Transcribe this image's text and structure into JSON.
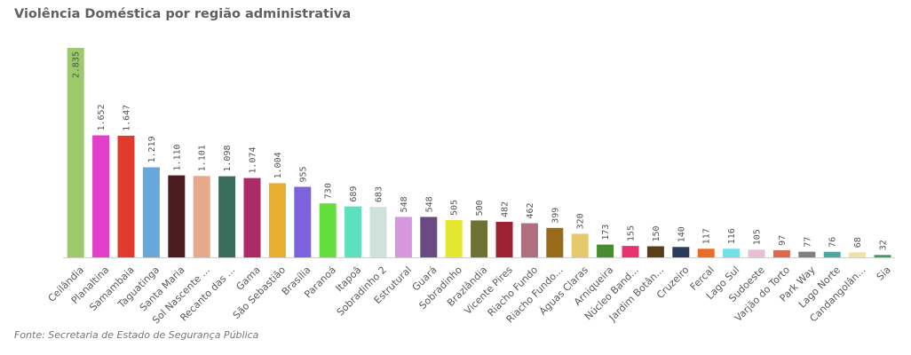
{
  "chart_data": {
    "type": "bar",
    "title": "Violência Doméstica por região administrativa",
    "xlabel": "",
    "ylabel": "",
    "ylim": [
      0,
      2835
    ],
    "grid": false,
    "legend": "none",
    "categories": [
      "Ceilândia",
      "Planaltina",
      "Samambaia",
      "Taguatinga",
      "Santa Maria",
      "Sol Nascente ...",
      "Recanto das ...",
      "Gama",
      "São Sebastião",
      "Brasília",
      "Paranoá",
      "Itapoã",
      "Sobradinho 2",
      "Estrutural",
      "Guará",
      "Sobradinho",
      "Brazlândia",
      "Vicente Pires",
      "Riacho Fundo",
      "Riacho Fundo...",
      "Águas Claras",
      "Arniqueira",
      "Núcleo Band...",
      "Jardim Botân...",
      "Cruzeiro",
      "Fercal",
      "Lago Sul",
      "Sudoeste",
      "Varjão do Torto",
      "Park Way",
      "Lago Norte",
      "Candangolân...",
      "Sia"
    ],
    "values": [
      2835,
      1652,
      1647,
      1219,
      1110,
      1101,
      1098,
      1074,
      1004,
      955,
      730,
      689,
      683,
      548,
      548,
      505,
      500,
      482,
      462,
      399,
      320,
      173,
      155,
      150,
      140,
      117,
      116,
      105,
      97,
      77,
      76,
      68,
      32
    ],
    "value_labels": [
      "2.835",
      "1.652",
      "1.647",
      "1.219",
      "1.110",
      "1.101",
      "1.098",
      "1.074",
      "1.004",
      "955",
      "730",
      "689",
      "683",
      "548",
      "548",
      "505",
      "500",
      "482",
      "462",
      "399",
      "320",
      "173",
      "155",
      "150",
      "140",
      "117",
      "116",
      "105",
      "97",
      "77",
      "76",
      "68",
      "32"
    ],
    "colors": [
      "#9bc96b",
      "#e23fcb",
      "#e03c2e",
      "#68a7d9",
      "#4b1d21",
      "#e6a98b",
      "#3b6d5a",
      "#ac2a66",
      "#e8ae2f",
      "#7d62de",
      "#62df3d",
      "#5de0bd",
      "#d0e0da",
      "#d797de",
      "#6a4a80",
      "#e5e630",
      "#6d7233",
      "#9c2231",
      "#b06f7e",
      "#9a6a1b",
      "#e6c96d",
      "#478c2e",
      "#e8346e",
      "#5a3d19",
      "#2b3c5a",
      "#e96d29",
      "#72dee6",
      "#ebbed8",
      "#db694e",
      "#7f7f7f",
      "#4aa8a1",
      "#f2e1a3",
      "#3a9e5c"
    ]
  },
  "footer": {
    "source": "Fonte: Secretaria de Estado de Segurança Pública"
  }
}
